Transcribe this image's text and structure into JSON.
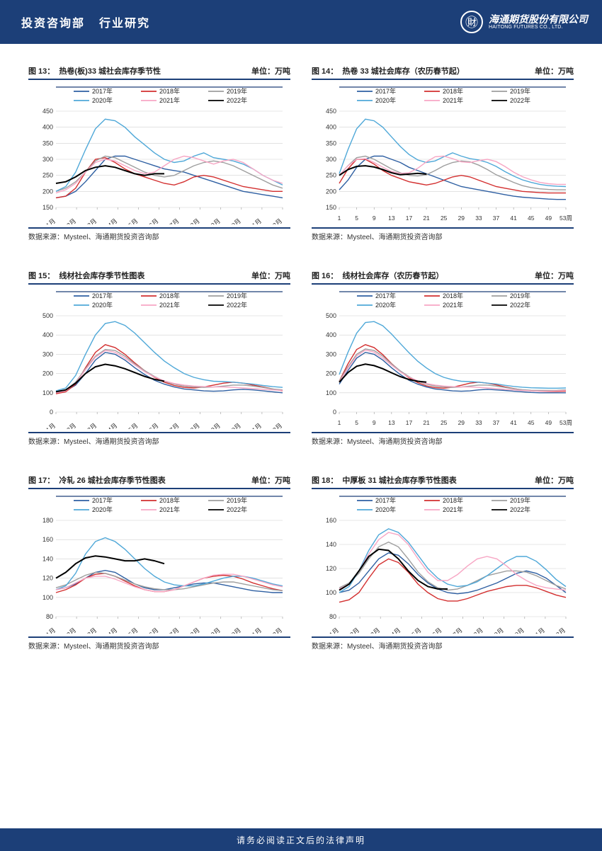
{
  "header": {
    "dept": "投资咨询部",
    "section": "行业研究",
    "company_cn": "海通期货股份有限公司",
    "company_en": "HAITONG FUTURES CO., LTD."
  },
  "footer_text": "请务必阅读正文后的法律声明",
  "source_text": "数据来源：Mysteel、海通期货投资咨询部",
  "legend_labels": [
    "2017年",
    "2018年",
    "2019年",
    "2020年",
    "2021年",
    "2022年"
  ],
  "series_colors": {
    "2017": "#2e5fa2",
    "2018": "#d32f2f",
    "2019": "#9e9e9e",
    "2020": "#4fa8d8",
    "2021": "#f7a6c4",
    "2022": "#000000"
  },
  "charts": [
    {
      "fig": "图 13：",
      "title": "热卷(板)33 城社会库存季节性",
      "unit": "单位：万吨",
      "ylim": [
        150,
        450
      ],
      "ystep": 50,
      "x_labels": [
        "1月",
        "2月",
        "3月",
        "4月",
        "5月",
        "6月",
        "7月",
        "8月",
        "9月",
        "10月",
        "11月",
        "12月"
      ],
      "x_rotate": true,
      "n_points": 24,
      "series": {
        "2017": [
          180,
          185,
          200,
          230,
          265,
          300,
          310,
          310,
          300,
          290,
          280,
          270,
          265,
          260,
          250,
          240,
          230,
          220,
          210,
          200,
          195,
          190,
          185,
          180
        ],
        "2018": [
          180,
          185,
          210,
          260,
          300,
          305,
          290,
          270,
          255,
          245,
          235,
          225,
          220,
          230,
          245,
          250,
          245,
          235,
          225,
          215,
          210,
          205,
          200,
          200
        ],
        "2019": [
          200,
          210,
          230,
          260,
          295,
          310,
          305,
          290,
          275,
          260,
          250,
          245,
          250,
          265,
          280,
          290,
          295,
          290,
          280,
          265,
          250,
          235,
          220,
          210
        ],
        "2020": [
          200,
          215,
          260,
          330,
          395,
          425,
          420,
          400,
          370,
          345,
          320,
          300,
          290,
          295,
          310,
          320,
          305,
          300,
          295,
          285,
          270,
          250,
          235,
          220
        ],
        "2021": [
          195,
          205,
          225,
          260,
          290,
          300,
          295,
          280,
          265,
          255,
          260,
          280,
          300,
          310,
          305,
          295,
          285,
          295,
          300,
          290,
          270,
          250,
          235,
          225
        ],
        "2022": [
          225,
          230,
          245,
          265,
          275,
          280,
          275,
          265,
          255,
          250,
          255,
          255
        ]
      }
    },
    {
      "fig": "图 14：",
      "title": "热卷 33 城社会库存（农历春节起）",
      "unit": "单位：万吨",
      "ylim": [
        150,
        450
      ],
      "ystep": 50,
      "x_labels": [
        "1",
        "5",
        "9",
        "13",
        "17",
        "21",
        "25",
        "29",
        "33",
        "37",
        "41",
        "45",
        "49",
        "53周"
      ],
      "x_rotate": false,
      "n_points": 27,
      "series": {
        "2017": [
          205,
          235,
          275,
          300,
          310,
          310,
          300,
          290,
          275,
          265,
          255,
          245,
          235,
          225,
          215,
          210,
          205,
          200,
          195,
          190,
          185,
          182,
          180,
          178,
          176,
          175,
          175
        ],
        "2018": [
          225,
          270,
          300,
          300,
          285,
          265,
          250,
          240,
          230,
          225,
          220,
          225,
          235,
          245,
          250,
          245,
          235,
          225,
          215,
          210,
          205,
          200,
          198,
          196,
          195,
          195,
          195
        ],
        "2019": [
          250,
          280,
          305,
          310,
          300,
          285,
          270,
          258,
          250,
          248,
          252,
          265,
          280,
          290,
          295,
          292,
          282,
          268,
          252,
          240,
          228,
          218,
          212,
          208,
          206,
          205,
          205
        ],
        "2020": [
          255,
          330,
          395,
          425,
          420,
          400,
          370,
          340,
          315,
          298,
          290,
          295,
          308,
          320,
          310,
          302,
          298,
          290,
          278,
          262,
          248,
          236,
          228,
          222,
          218,
          216,
          215
        ],
        "2021": [
          250,
          280,
          300,
          302,
          290,
          275,
          262,
          256,
          258,
          272,
          292,
          308,
          310,
          302,
          292,
          290,
          296,
          300,
          293,
          278,
          260,
          246,
          236,
          228,
          224,
          222,
          222
        ],
        "2022": [
          250,
          268,
          278,
          280,
          276,
          268,
          258,
          252,
          254,
          256,
          254
        ]
      }
    },
    {
      "fig": "图 15：",
      "title": "线材社会库存季节性图表",
      "unit": "单位：万吨",
      "ylim": [
        0,
        500
      ],
      "ystep": 100,
      "x_labels": [
        "1月",
        "2月",
        "3月",
        "4月",
        "5月",
        "6月",
        "7月",
        "8月",
        "9月",
        "10月",
        "11月",
        "12月"
      ],
      "x_rotate": true,
      "n_points": 24,
      "series": {
        "2017": [
          100,
          110,
          140,
          200,
          270,
          310,
          300,
          270,
          230,
          195,
          165,
          145,
          130,
          120,
          115,
          110,
          108,
          110,
          115,
          118,
          115,
          110,
          105,
          100
        ],
        "2018": [
          95,
          105,
          145,
          230,
          310,
          350,
          335,
          300,
          255,
          215,
          180,
          155,
          138,
          128,
          125,
          130,
          140,
          150,
          155,
          150,
          140,
          130,
          120,
          110
        ],
        "2019": [
          105,
          115,
          155,
          225,
          290,
          325,
          320,
          290,
          250,
          215,
          185,
          160,
          145,
          135,
          130,
          128,
          130,
          135,
          140,
          140,
          135,
          128,
          120,
          115
        ],
        "2020": [
          110,
          125,
          190,
          300,
          400,
          460,
          470,
          450,
          410,
          360,
          310,
          265,
          230,
          200,
          180,
          168,
          160,
          158,
          155,
          150,
          145,
          138,
          132,
          128
        ],
        "2021": [
          100,
          110,
          150,
          220,
          285,
          320,
          310,
          280,
          245,
          210,
          182,
          162,
          148,
          140,
          135,
          132,
          130,
          130,
          128,
          125,
          122,
          118,
          115,
          112
        ],
        "2022": [
          105,
          115,
          150,
          200,
          235,
          248,
          240,
          225,
          205,
          185,
          170,
          160
        ]
      }
    },
    {
      "fig": "图 16：",
      "title": "线材社会库存（农历春节起）",
      "unit": "单位：万吨",
      "ylim": [
        0,
        500
      ],
      "ystep": 100,
      "x_labels": [
        "1",
        "5",
        "9",
        "13",
        "17",
        "21",
        "25",
        "29",
        "33",
        "37",
        "41",
        "45",
        "49",
        "53周"
      ],
      "x_rotate": false,
      "n_points": 27,
      "series": {
        "2017": [
          145,
          215,
          280,
          310,
          300,
          270,
          230,
          195,
          165,
          145,
          130,
          120,
          115,
          110,
          108,
          110,
          115,
          118,
          115,
          112,
          108,
          105,
          102,
          100,
          100,
          100,
          100
        ],
        "2018": [
          160,
          250,
          325,
          350,
          335,
          298,
          252,
          212,
          178,
          153,
          136,
          127,
          124,
          129,
          139,
          150,
          155,
          150,
          141,
          131,
          122,
          114,
          110,
          108,
          107,
          107,
          108
        ],
        "2019": [
          160,
          235,
          300,
          328,
          320,
          290,
          250,
          214,
          184,
          160,
          145,
          135,
          130,
          128,
          130,
          135,
          140,
          140,
          135,
          128,
          121,
          116,
          113,
          112,
          112,
          113,
          115
        ],
        "2020": [
          195,
          310,
          410,
          465,
          470,
          448,
          405,
          356,
          308,
          264,
          229,
          200,
          180,
          168,
          160,
          158,
          155,
          150,
          146,
          139,
          133,
          129,
          126,
          125,
          124,
          124,
          125
        ],
        "2021": [
          155,
          228,
          292,
          322,
          311,
          280,
          244,
          209,
          181,
          162,
          148,
          140,
          135,
          132,
          130,
          130,
          128,
          125,
          122,
          118,
          115,
          112,
          110,
          109,
          109,
          110,
          112
        ],
        "2022": [
          155,
          205,
          238,
          249,
          241,
          225,
          204,
          184,
          169,
          160,
          155
        ]
      }
    },
    {
      "fig": "图 17：",
      "title": "冷轧 26 城社会库存季节性图表",
      "unit": "单位：万吨",
      "ylim": [
        80,
        180
      ],
      "ystep": 20,
      "x_labels": [
        "1月",
        "2月",
        "3月",
        "4月",
        "5月",
        "6月",
        "7月",
        "8月",
        "9月",
        "10月",
        "11月",
        "12月"
      ],
      "x_rotate": true,
      "n_points": 24,
      "series": {
        "2017": [
          108,
          110,
          114,
          120,
          126,
          128,
          126,
          120,
          114,
          110,
          108,
          108,
          110,
          112,
          114,
          115,
          115,
          113,
          111,
          109,
          107,
          106,
          105,
          105
        ],
        "2018": [
          105,
          108,
          113,
          120,
          124,
          125,
          122,
          117,
          112,
          108,
          106,
          106,
          108,
          112,
          116,
          120,
          122,
          123,
          122,
          119,
          115,
          112,
          109,
          107
        ],
        "2019": [
          110,
          113,
          118,
          123,
          126,
          125,
          122,
          118,
          114,
          111,
          109,
          108,
          108,
          109,
          111,
          113,
          115,
          116,
          116,
          114,
          112,
          110,
          108,
          107
        ],
        "2020": [
          108,
          112,
          125,
          145,
          158,
          162,
          158,
          150,
          140,
          130,
          122,
          116,
          113,
          112,
          112,
          114,
          117,
          120,
          122,
          122,
          120,
          117,
          114,
          112
        ],
        "2021": [
          108,
          110,
          115,
          120,
          122,
          122,
          119,
          115,
          111,
          108,
          106,
          106,
          108,
          112,
          116,
          120,
          123,
          124,
          124,
          122,
          119,
          116,
          113,
          111
        ],
        "2022": [
          120,
          126,
          135,
          141,
          143,
          142,
          140,
          138,
          138,
          140,
          138,
          135
        ]
      }
    },
    {
      "fig": "图 18：",
      "title": "中厚板 31 城社会库存季节性图表",
      "unit": "单位：万吨",
      "ylim": [
        80,
        160
      ],
      "ystep": 20,
      "x_labels": [
        "1月",
        "2月",
        "3月",
        "4月",
        "5月",
        "6月",
        "7月",
        "8月",
        "9月",
        "10月",
        "11月",
        "12月"
      ],
      "x_rotate": true,
      "n_points": 24,
      "series": {
        "2017": [
          100,
          102,
          108,
          118,
          128,
          133,
          131,
          124,
          115,
          108,
          103,
          100,
          99,
          100,
          102,
          105,
          108,
          112,
          116,
          118,
          116,
          112,
          106,
          100
        ],
        "2018": [
          92,
          94,
          100,
          112,
          123,
          128,
          125,
          117,
          107,
          100,
          95,
          93,
          93,
          95,
          98,
          101,
          103,
          105,
          106,
          106,
          104,
          101,
          98,
          96
        ],
        "2019": [
          104,
          108,
          116,
          128,
          138,
          142,
          138,
          128,
          117,
          109,
          104,
          102,
          103,
          106,
          110,
          114,
          116,
          118,
          118,
          117,
          114,
          110,
          106,
          103
        ],
        "2020": [
          100,
          105,
          118,
          135,
          148,
          153,
          150,
          142,
          131,
          120,
          112,
          107,
          105,
          106,
          109,
          114,
          120,
          126,
          130,
          130,
          126,
          119,
          111,
          105
        ],
        "2021": [
          103,
          107,
          118,
          132,
          144,
          150,
          148,
          140,
          128,
          117,
          110,
          110,
          115,
          122,
          128,
          130,
          128,
          122,
          115,
          110,
          106,
          104,
          103,
          102
        ],
        "2022": [
          102,
          107,
          118,
          130,
          136,
          135,
          128,
          118,
          110,
          105,
          103,
          103
        ]
      }
    }
  ]
}
